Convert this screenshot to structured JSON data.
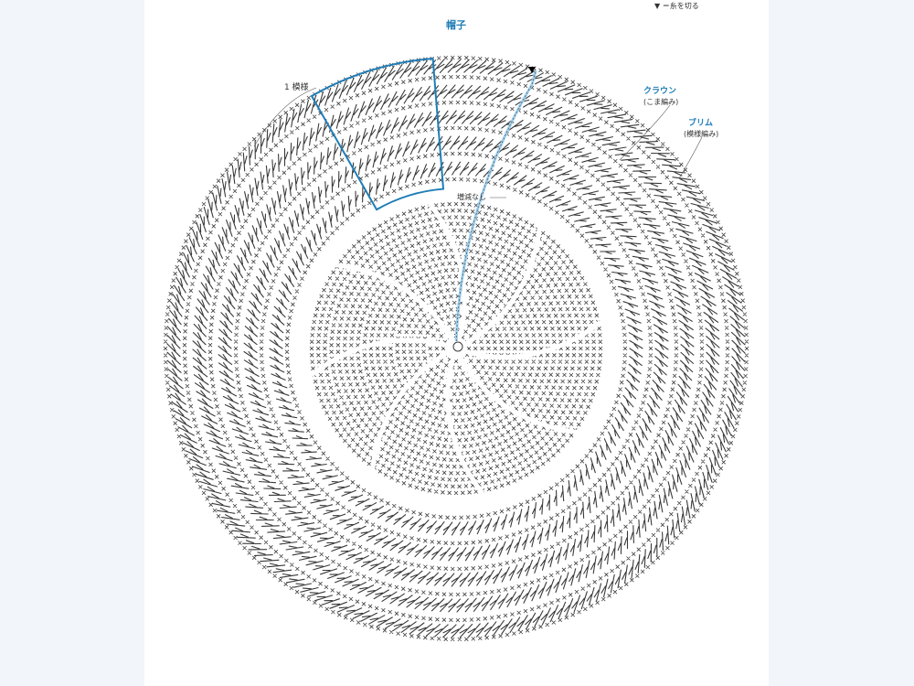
{
  "title": "帽子",
  "legend": {
    "symbol": "▼",
    "text": "＝糸を切る"
  },
  "labels": {
    "pattern_repeat": "1 模様",
    "crown": "クラウン",
    "crown_sub": "(こま編み)",
    "brim": "ブリム",
    "brim_sub": "(模様編み)",
    "no_change": "増減なし"
  },
  "colors": {
    "accent": "#1f7db6",
    "stitch": "#3a3a3a",
    "highlight": "#9fd0ef",
    "background": "#ffffff"
  },
  "diagram": {
    "type": "crochet-chart-round",
    "crown_wedges": 8,
    "brim_motif_repeats": 8
  }
}
